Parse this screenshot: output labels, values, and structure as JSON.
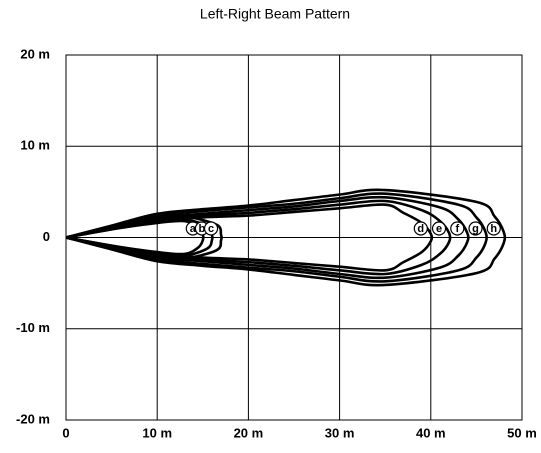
{
  "chart_data": {
    "type": "line",
    "title": "Left-Right Beam Pattern",
    "grid": true,
    "xlim": [
      0,
      50
    ],
    "ylim": [
      -20,
      20
    ],
    "xticks": [
      0,
      {
        "value": 10,
        "label": "10 m"
      },
      {
        "value": 20,
        "label": "20 m"
      },
      {
        "value": 30,
        "label": "30 m"
      },
      {
        "value": 40,
        "label": "40 m"
      },
      {
        "value": 50,
        "label": "50 m"
      }
    ],
    "yticks": [
      {
        "value": 20,
        "label": "20 m"
      },
      {
        "value": 10,
        "label": "10 m"
      },
      0,
      {
        "value": -10,
        "label": "-10 m"
      },
      {
        "value": -20,
        "label": "-20 m"
      }
    ],
    "series": [
      {
        "name": "a",
        "color": "#000000",
        "x": [
          0,
          5,
          10,
          13,
          14.5,
          15,
          15,
          14.5,
          13,
          10,
          5,
          0
        ],
        "values": [
          0,
          0.9,
          1.6,
          1.8,
          1.1,
          0.3,
          -0.3,
          -1.1,
          -1.8,
          -1.6,
          -0.9,
          0
        ]
      },
      {
        "name": "b",
        "color": "#000000",
        "x": [
          0,
          5,
          10,
          13,
          15.5,
          16,
          16,
          15.5,
          13,
          10,
          5,
          0
        ],
        "values": [
          0,
          1,
          1.8,
          2,
          1.2,
          0.3,
          -0.3,
          -1.2,
          -2,
          -1.8,
          -1,
          0
        ]
      },
      {
        "name": "c",
        "color": "#000000",
        "x": [
          0,
          5,
          10,
          13,
          16.5,
          17,
          17,
          16.5,
          13,
          10,
          5,
          0
        ],
        "values": [
          0,
          1.2,
          2.1,
          2.3,
          1.4,
          0.3,
          -0.3,
          -1.4,
          -2.3,
          -2.1,
          -1.2,
          0
        ]
      },
      {
        "name": "d",
        "color": "#000000",
        "x": [
          0,
          5,
          10,
          15,
          20,
          25,
          30,
          35,
          37,
          39,
          40,
          40,
          39,
          37,
          35,
          30,
          25,
          20,
          15,
          10,
          5,
          0
        ],
        "values": [
          0,
          0.9,
          1.8,
          2.2,
          2.4,
          2.8,
          3.2,
          3.6,
          2.7,
          1.6,
          0.4,
          -0.4,
          -1.6,
          -2.7,
          -3.6,
          -3.2,
          -2.8,
          -2.4,
          -2.2,
          -1.8,
          -0.9,
          0
        ]
      },
      {
        "name": "e",
        "color": "#000000",
        "x": [
          0,
          5,
          10,
          15,
          20,
          25,
          30,
          35,
          39,
          41,
          42,
          42,
          41,
          39,
          35,
          30,
          25,
          20,
          15,
          10,
          5,
          0
        ],
        "values": [
          0,
          1,
          2,
          2.4,
          2.7,
          3.1,
          3.6,
          4,
          3,
          1.8,
          0.5,
          -0.5,
          -1.8,
          -3,
          -4,
          -3.6,
          -3.1,
          -2.7,
          -2.4,
          -2,
          -1,
          0
        ]
      },
      {
        "name": "f",
        "color": "#000000",
        "x": [
          0,
          5,
          10,
          15,
          20,
          25,
          30,
          35,
          41,
          43,
          44,
          44,
          43,
          41,
          35,
          30,
          25,
          20,
          15,
          10,
          5,
          0
        ],
        "values": [
          0,
          1.1,
          2.2,
          2.6,
          3,
          3.4,
          4,
          4.4,
          3.3,
          2,
          0.5,
          -0.5,
          -2,
          -3.3,
          -4.4,
          -4,
          -3.4,
          -3,
          -2.6,
          -2.2,
          -1.1,
          0
        ]
      },
      {
        "name": "g",
        "color": "#000000",
        "x": [
          0,
          5,
          10,
          15,
          20,
          25,
          30,
          35,
          43,
          45,
          46,
          46,
          45,
          43,
          35,
          30,
          25,
          20,
          15,
          10,
          5,
          0
        ],
        "values": [
          0,
          1.2,
          2.4,
          2.9,
          3.3,
          3.7,
          4.3,
          4.8,
          3.6,
          2.2,
          0.6,
          -0.6,
          -2.2,
          -3.6,
          -4.8,
          -4.3,
          -3.7,
          -3.3,
          -2.9,
          -2.4,
          -1.2,
          0
        ]
      },
      {
        "name": "h",
        "color": "#000000",
        "x": [
          0,
          5,
          10,
          15,
          20,
          25,
          30,
          35,
          45,
          47,
          48,
          48,
          47,
          45,
          35,
          30,
          25,
          20,
          15,
          10,
          5,
          0
        ],
        "values": [
          0,
          1.3,
          2.6,
          3.1,
          3.5,
          4.1,
          4.7,
          5.2,
          3.9,
          2.3,
          0.6,
          -0.6,
          -2.3,
          -3.9,
          -5.2,
          -4.7,
          -4.1,
          -3.5,
          -3.1,
          -2.6,
          -1.3,
          0
        ]
      }
    ]
  }
}
